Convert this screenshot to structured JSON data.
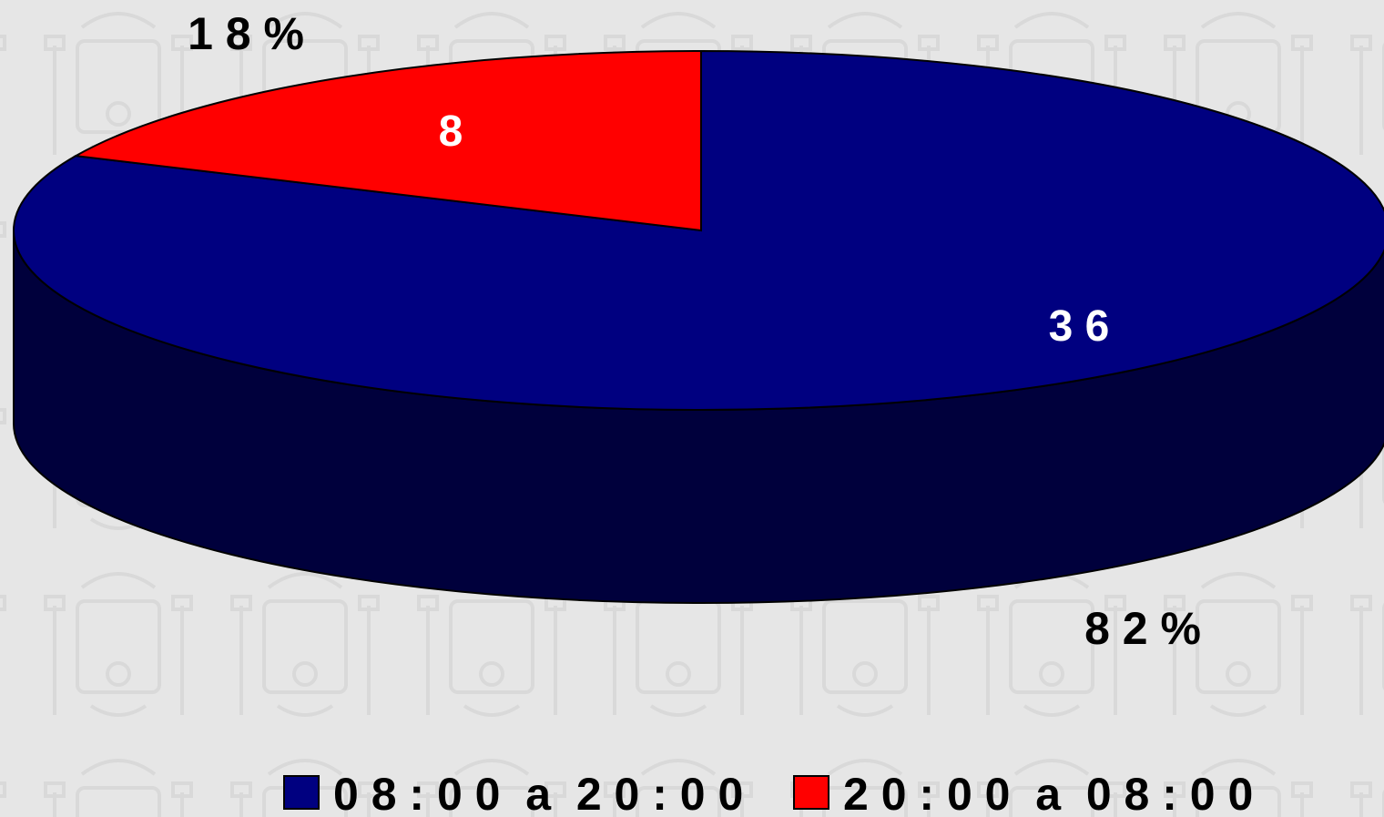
{
  "chart_data": {
    "type": "pie",
    "style": "3d",
    "categories": [
      "08:00 a 20:00",
      "20:00 a 08:00"
    ],
    "values": [
      36,
      8
    ],
    "percent_labels": [
      "82%",
      "18%"
    ],
    "colors": [
      "#000080",
      "#ff0000"
    ],
    "side_colors": [
      "#00003c",
      "#7a0000"
    ],
    "legend_position": "bottom",
    "background": "#e6e6e6"
  },
  "legend": {
    "items": [
      {
        "label": "0 8 : 0 0  a  2 0 : 0 0",
        "color": "#000080"
      },
      {
        "label": "2 0 : 0 0  a  0 8 : 0 0",
        "color": "#ff0000"
      }
    ]
  },
  "labels": {
    "slice_values": [
      "3 6",
      "8"
    ],
    "slice_percents": [
      "8 2 %",
      "1 8 %"
    ]
  }
}
